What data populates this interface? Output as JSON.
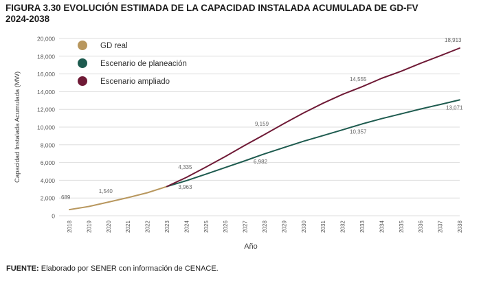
{
  "title_line1": "FIGURA 3.30 EVOLUCIÓN ESTIMADA DE LA CAPACIDAD INSTALADA ACUMULADA DE GD-FV",
  "title_line2": "2024-2038",
  "source_label": "FUENTE:",
  "source_text": " Elaborado por SENER con información de CENACE.",
  "colors": {
    "real": "#b8975e",
    "planeacion": "#1e5b4f",
    "ampliado": "#6f1a36",
    "grid": "#dedede",
    "text": "#555555"
  },
  "chart_data": {
    "type": "line",
    "xlabel": "Año",
    "ylabel": "Capacidad Instalada Acumulada (MW)",
    "ylim": [
      0,
      20000
    ],
    "yticks": [
      0,
      2000,
      4000,
      6000,
      8000,
      10000,
      12000,
      14000,
      16000,
      18000,
      20000
    ],
    "ytick_labels": [
      "0",
      "2,000",
      "4,000",
      "6,000",
      "8,000",
      "10,000",
      "12,000",
      "14,000",
      "16,000",
      "18,000",
      "20,000"
    ],
    "categories": [
      "2018",
      "2019",
      "2020",
      "2021",
      "2022",
      "2023",
      "2024",
      "2025",
      "2026",
      "2027",
      "2028",
      "2029",
      "2030",
      "2031",
      "2032",
      "2033",
      "2034",
      "2035",
      "2036",
      "2037",
      "2038"
    ],
    "grid": true,
    "legend_position": "top-left",
    "series": [
      {
        "name": "GD real",
        "key": "real",
        "x": [
          "2018",
          "2019",
          "2020",
          "2021",
          "2022",
          "2023"
        ],
        "values": [
          689,
          1050,
          1540,
          2050,
          2600,
          3300
        ]
      },
      {
        "name": "Escenario de planeación",
        "key": "planeacion",
        "x": [
          "2023",
          "2024",
          "2025",
          "2026",
          "2027",
          "2028",
          "2029",
          "2030",
          "2031",
          "2032",
          "2033",
          "2034",
          "2035",
          "2036",
          "2037",
          "2038"
        ],
        "values": [
          3300,
          3963,
          4700,
          5450,
          6200,
          6982,
          7700,
          8400,
          9050,
          9700,
          10357,
          10950,
          11500,
          12050,
          12550,
          13071
        ]
      },
      {
        "name": "Escenario ampliado",
        "key": "ampliado",
        "x": [
          "2023",
          "2024",
          "2025",
          "2026",
          "2027",
          "2028",
          "2029",
          "2030",
          "2031",
          "2032",
          "2033",
          "2034",
          "2035",
          "2036",
          "2037",
          "2038"
        ],
        "values": [
          3300,
          4335,
          5500,
          6700,
          7950,
          9159,
          10400,
          11600,
          12700,
          13700,
          14555,
          15500,
          16300,
          17200,
          18050,
          18913
        ]
      }
    ],
    "annotations": [
      {
        "year": "2018",
        "value": 689,
        "text": "689"
      },
      {
        "year": "2020",
        "value": 1540,
        "text": "1,540"
      },
      {
        "year": "2024",
        "value": 4335,
        "text": "4,335"
      },
      {
        "year": "2024",
        "value": 3963,
        "text": "3,963"
      },
      {
        "year": "2028",
        "value": 9159,
        "text": "9,159"
      },
      {
        "year": "2028",
        "value": 6982,
        "text": "6,982"
      },
      {
        "year": "2033",
        "value": 14555,
        "text": "14,555"
      },
      {
        "year": "2033",
        "value": 10357,
        "text": "10,357"
      },
      {
        "year": "2038",
        "value": 18913,
        "text": "18,913"
      },
      {
        "year": "2038",
        "value": 13071,
        "text": "13,071"
      }
    ]
  }
}
